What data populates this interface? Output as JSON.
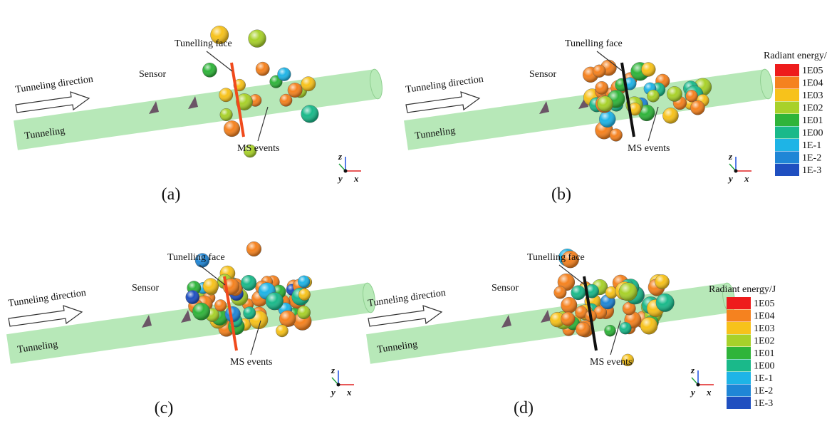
{
  "panels": [
    {
      "label": "(a)",
      "tunnel": "Tunneling",
      "direction": "Tunneling direction",
      "sensor": "Sensor",
      "face": "Tunelling face",
      "events": "MS events",
      "face_color": "#f04a1c",
      "axes": {
        "z": "z",
        "y": "y",
        "x": "x"
      }
    },
    {
      "label": "(b)",
      "tunnel": "Tunneling",
      "direction": "Tunneling direction",
      "sensor": "Sensor",
      "face": "Tunelling face",
      "events": "MS events",
      "face_color": "#111111",
      "axes": {
        "z": "z",
        "y": "y",
        "x": "x"
      }
    },
    {
      "label": "(c)",
      "tunnel": "Tunneling",
      "direction": "Tunneling direction",
      "sensor": "Sensor",
      "face": "Tunelling face",
      "events": "MS events",
      "face_color": "#f04a1c",
      "axes": {
        "z": "z",
        "y": "y",
        "x": "x"
      }
    },
    {
      "label": "(d)",
      "tunnel": "Tunneling",
      "direction": "Tunneling direction",
      "sensor": "Sensor",
      "face": "Tunelling face",
      "events": "MS events",
      "face_color": "#111111",
      "axes": {
        "z": "z",
        "y": "y",
        "x": "x"
      }
    }
  ],
  "legends": [
    {
      "title": "Radiant energy/J",
      "levels": [
        {
          "label": "1E05",
          "color": "#ee1c1c"
        },
        {
          "label": "1E04",
          "color": "#f5821f"
        },
        {
          "label": "1E03",
          "color": "#f7c21b"
        },
        {
          "label": "1E02",
          "color": "#a8d12a"
        },
        {
          "label": "1E01",
          "color": "#2fb43a"
        },
        {
          "label": "1E00",
          "color": "#1ab98a"
        },
        {
          "label": "1E-1",
          "color": "#1eb4e6"
        },
        {
          "label": "1E-2",
          "color": "#1f86d6"
        },
        {
          "label": "1E-3",
          "color": "#1f4fc0"
        }
      ]
    },
    {
      "title": "Radiant energy/J",
      "levels": [
        {
          "label": "1E05",
          "color": "#ee1c1c"
        },
        {
          "label": "1E04",
          "color": "#f5821f"
        },
        {
          "label": "1E03",
          "color": "#f7c21b"
        },
        {
          "label": "1E02",
          "color": "#a8d12a"
        },
        {
          "label": "1E01",
          "color": "#2fb43a"
        },
        {
          "label": "1E00",
          "color": "#1ab98a"
        },
        {
          "label": "1E-1",
          "color": "#1eb4e6"
        },
        {
          "label": "1E-2",
          "color": "#1f86d6"
        },
        {
          "label": "1E-3",
          "color": "#1f4fc0"
        }
      ]
    }
  ]
}
